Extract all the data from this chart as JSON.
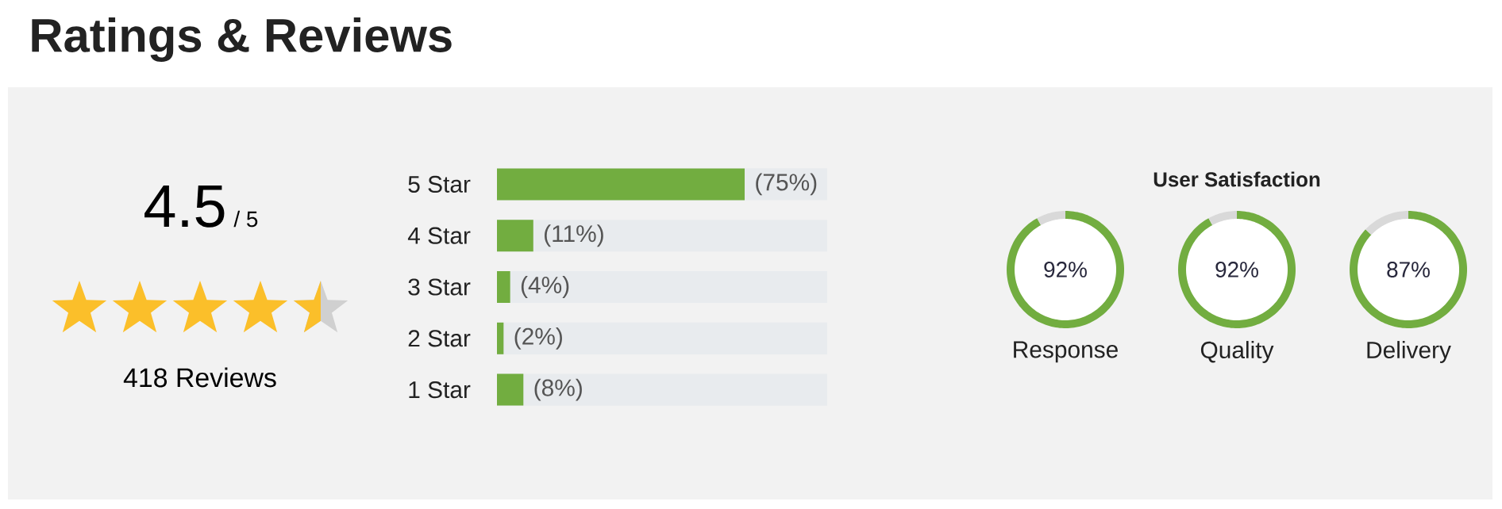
{
  "chart_data": [
    {
      "type": "other",
      "title": "Ratings & Reviews",
      "annotations": [
        "4.5",
        "/ 5",
        "418 Reviews"
      ]
    },
    {
      "type": "bar",
      "orientation": "horizontal",
      "categories": [
        "5 Star",
        "4 Star",
        "3 Star",
        "2 Star",
        "1 Star"
      ],
      "values": [
        75,
        11,
        4,
        2,
        8
      ],
      "value_labels": [
        "(75%)",
        "(11%)",
        "(4%)",
        "(2%)",
        "(8%)"
      ],
      "color": "#72ad40",
      "xlim": [
        0,
        100
      ],
      "tick_labels": "y"
    },
    {
      "type": "donut",
      "xlabel": "Response",
      "categories": [
        null,
        null
      ],
      "values": [
        92,
        8
      ],
      "colors": [
        "#72ad40",
        "#d9d9d9"
      ],
      "value_labels": [
        "92%",
        null
      ]
    },
    {
      "type": "donut",
      "xlabel": "Quality",
      "annotations": [
        "User Satisfaction"
      ],
      "categories": [
        null,
        null
      ],
      "values": [
        92,
        8
      ],
      "colors": [
        "#72ad40",
        "#d9d9d9"
      ],
      "value_labels": [
        "92%",
        null
      ]
    },
    {
      "type": "donut",
      "xlabel": "Delivery",
      "categories": [
        null,
        null
      ],
      "values": [
        87,
        13
      ],
      "colors": [
        "#72ad40",
        "#d9d9d9"
      ],
      "value_labels": [
        "87%",
        null
      ]
    }
  ]
}
